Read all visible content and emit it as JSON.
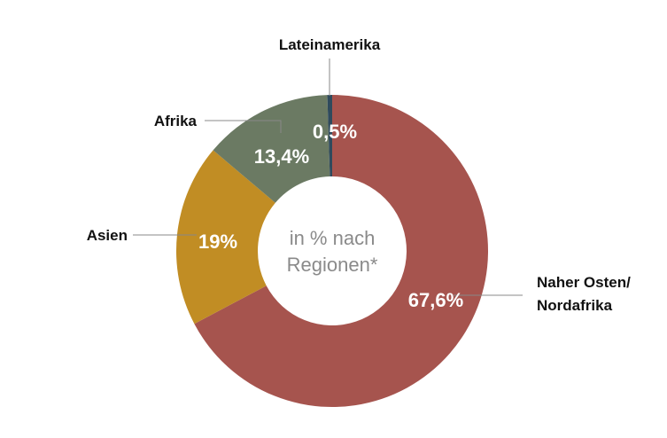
{
  "chart_data": {
    "type": "pie",
    "variant": "donut",
    "center_text": [
      "in % nach",
      "Regionen*"
    ],
    "categories": [
      "Naher Osten/\nNordafrika",
      "Asien",
      "Afrika",
      "Lateinamerika"
    ],
    "slices": [
      {
        "name_lines": [
          "Naher Osten/",
          "Nordafrika"
        ],
        "value": 67.6,
        "value_label": "67,6%",
        "color": "#a6544e"
      },
      {
        "name_lines": [
          "Asien"
        ],
        "value": 19,
        "value_label": "19%",
        "color": "#c18d24"
      },
      {
        "name_lines": [
          "Afrika"
        ],
        "value": 13.4,
        "value_label": "13,4%",
        "color": "#6b7a63"
      },
      {
        "name_lines": [
          "Lateinamerika"
        ],
        "value": 0.5,
        "value_label": "0,5%",
        "color": "#2f4a5c"
      }
    ],
    "legend": "none",
    "grid": false,
    "start_angle_deg": 0,
    "direction": "clockwise"
  }
}
